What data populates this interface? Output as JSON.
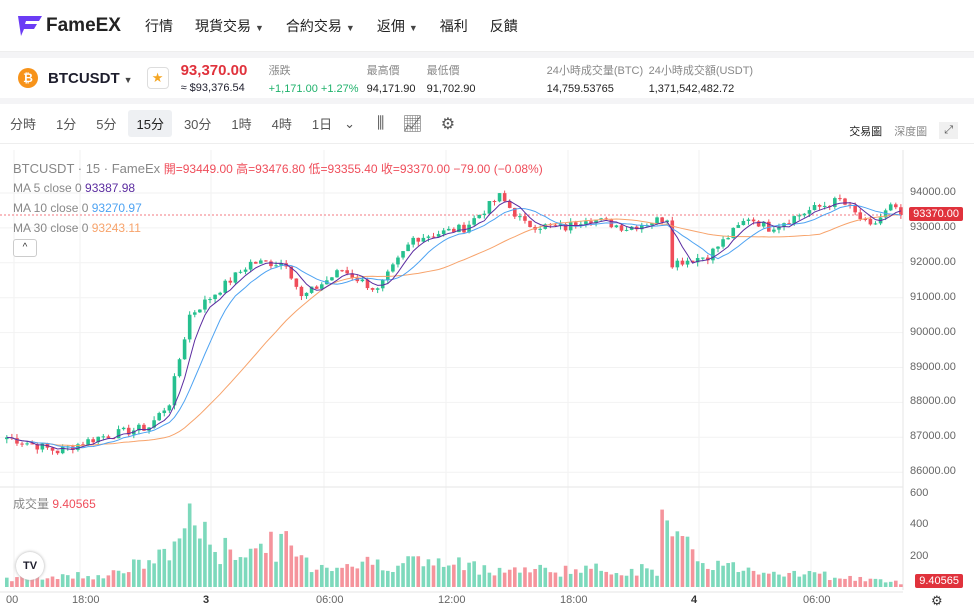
{
  "nav": {
    "brand": "FameEX",
    "items": [
      {
        "label": "行情"
      },
      {
        "label": "現貨交易",
        "dropdown": true
      },
      {
        "label": "合約交易",
        "dropdown": true
      },
      {
        "label": "返佣",
        "dropdown": true
      },
      {
        "label": "福利"
      },
      {
        "label": "反饋"
      }
    ]
  },
  "ticker": {
    "symbol": "BTCUSDT",
    "price": "93,370.00",
    "usd": "≈ $93,376.54",
    "stats": [
      {
        "label": "漲跌",
        "value": "+1,171.00 +1.27%",
        "color": "#20b26c"
      },
      {
        "label": "最高價",
        "value": "94,171.90"
      },
      {
        "label": "最低價",
        "value": "91,702.90"
      },
      {
        "label": "24小時成交量(BTC)",
        "value": "14,759.53765"
      },
      {
        "label": "24小時成交額(USDT)",
        "value": "1,371,542,482.72"
      }
    ]
  },
  "toolbar": {
    "timeframes": [
      "分時",
      "1分",
      "5分",
      "15分",
      "30分",
      "1時",
      "4時",
      "1日"
    ],
    "active": "15分",
    "chart_label": "交易圖",
    "depth_label": "深度圖"
  },
  "legend": {
    "title": "BTCUSDT · 15 · FameEx",
    "ohlc": "開=93449.00  高=93476.80  低=93355.40  收=93370.00  −79.00 (−0.08%)",
    "ma5_label": "MA 5 close 0",
    "ma5": "93387.98",
    "ma10_label": "MA 10 close 0",
    "ma10": "93270.97",
    "ma30_label": "MA 30 close 0",
    "ma30": "93243.11",
    "vol_label": "成交量",
    "vol": "9.40565"
  },
  "colors": {
    "up": "#26c08f",
    "down": "#ef4d5a",
    "ma5": "#5b2ca0",
    "ma10": "#4ea3f2",
    "ma30": "#f7a36b"
  },
  "chart_data": {
    "type": "candlestick",
    "price_ylim": [
      85600,
      94400
    ],
    "price_ticks": [
      "94000.00",
      "93000.00",
      "92000.00",
      "91000.00",
      "90000.00",
      "89000.00",
      "88000.00",
      "87000.00",
      "86000.00"
    ],
    "vol_ticks": [
      "600",
      "400",
      "200"
    ],
    "vol_ylim": [
      0,
      600
    ],
    "last_price": "93370.00",
    "last_vol": "9.40565",
    "x_ticks": [
      "00",
      "18:00",
      "3",
      "06:00",
      "12:00",
      "18:00",
      "4",
      "06:00"
    ],
    "price_path": [
      [
        0,
        87000
      ],
      [
        10,
        86600
      ],
      [
        18,
        87000
      ],
      [
        28,
        87300
      ],
      [
        32,
        88000
      ],
      [
        36,
        90500
      ],
      [
        40,
        91000
      ],
      [
        48,
        92000
      ],
      [
        55,
        92000
      ],
      [
        58,
        91000
      ],
      [
        66,
        91800
      ],
      [
        73,
        91200
      ],
      [
        80,
        92700
      ],
      [
        90,
        93000
      ],
      [
        97,
        93900
      ],
      [
        102,
        93100
      ],
      [
        110,
        93000
      ],
      [
        114,
        93300
      ],
      [
        122,
        93000
      ],
      [
        130,
        93300
      ],
      [
        131,
        92000
      ],
      [
        138,
        92200
      ],
      [
        146,
        93300
      ],
      [
        150,
        93000
      ],
      [
        158,
        93500
      ],
      [
        164,
        93800
      ],
      [
        170,
        93000
      ],
      [
        174,
        93600
      ],
      [
        176,
        93370
      ]
    ],
    "vol_path": [
      [
        0,
        60
      ],
      [
        20,
        90
      ],
      [
        30,
        200
      ],
      [
        34,
        330
      ],
      [
        36,
        580
      ],
      [
        38,
        380
      ],
      [
        42,
        250
      ],
      [
        55,
        300
      ],
      [
        60,
        150
      ],
      [
        80,
        180
      ],
      [
        100,
        120
      ],
      [
        128,
        120
      ],
      [
        129,
        490
      ],
      [
        131,
        320
      ],
      [
        134,
        260
      ],
      [
        140,
        150
      ],
      [
        150,
        120
      ],
      [
        176,
        30
      ]
    ]
  }
}
